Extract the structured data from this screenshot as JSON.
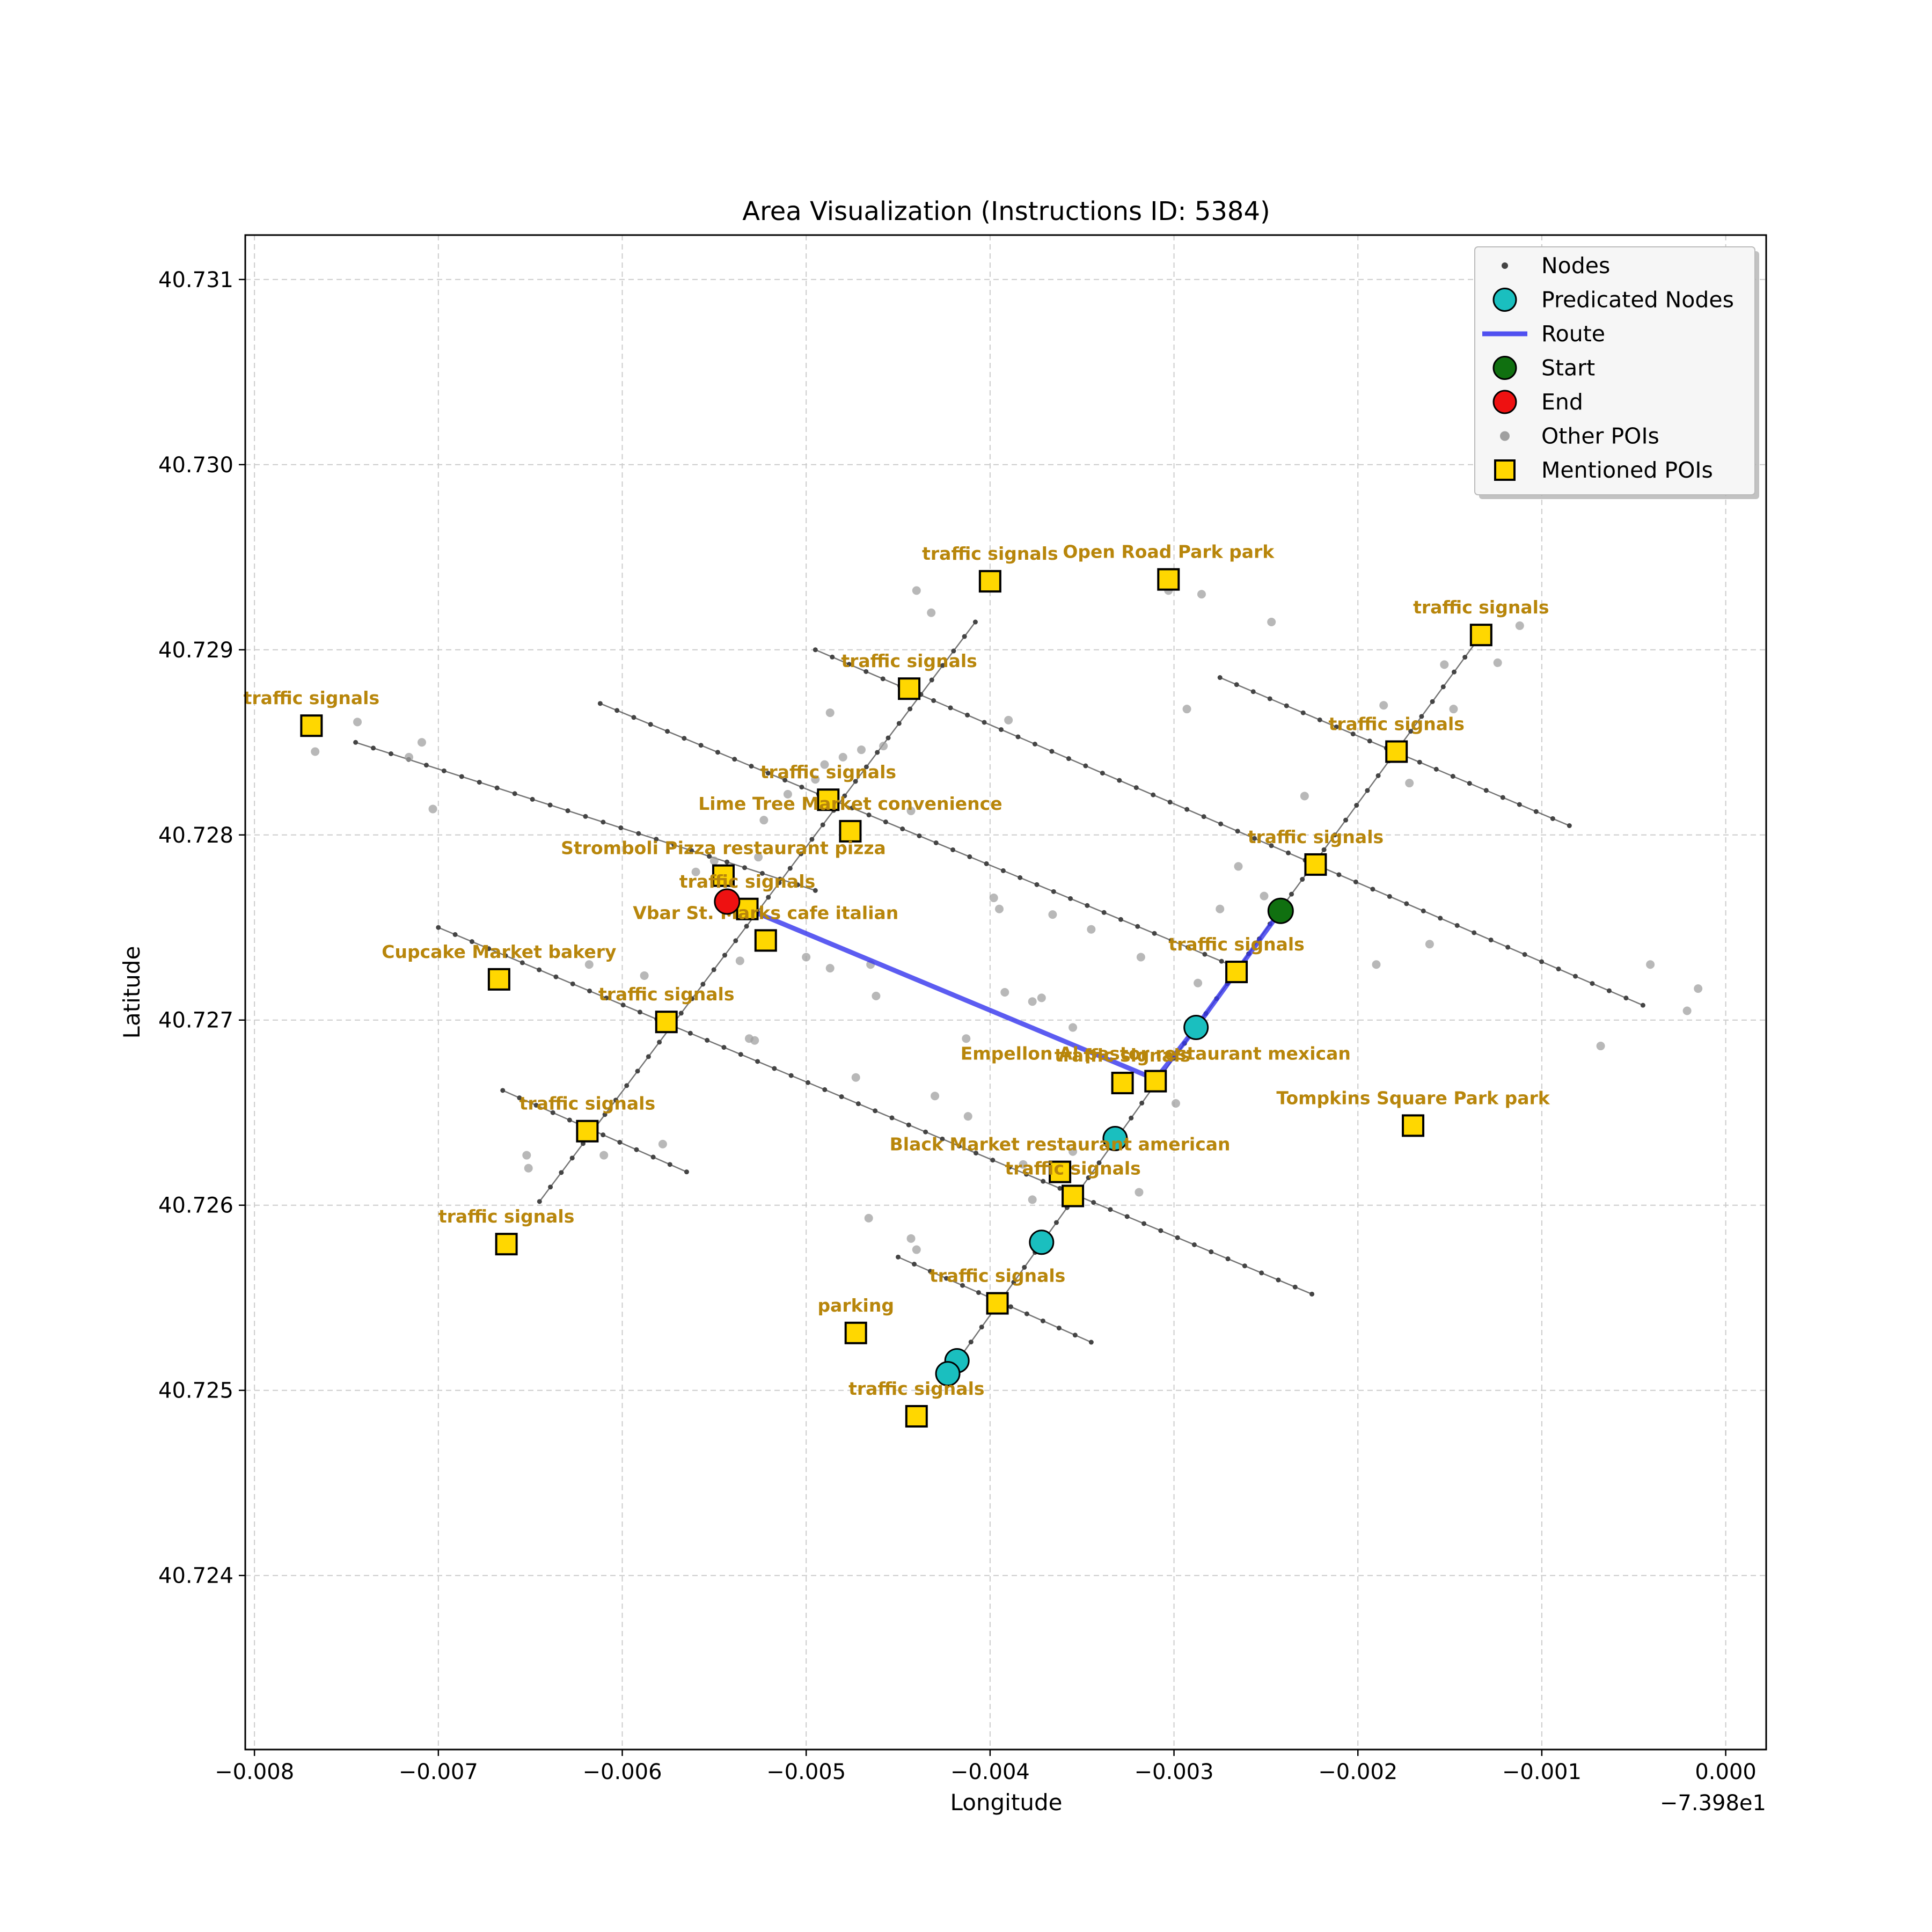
{
  "colors": {
    "node": "#444444",
    "road": "#555555",
    "predicated": "#1abfbf",
    "route": "#3333ee",
    "start": "#107010",
    "end": "#ee1111",
    "other_poi": "#a0a0a0",
    "mentioned_poi_fill": "#ffd700",
    "mentioned_poi_label": "#b8860b",
    "grid": "#cccccc"
  },
  "chart_data": {
    "type": "scatter",
    "title": "Area Visualization (Instructions ID: 5384)",
    "xlabel": "Longitude",
    "ylabel": "Latitude",
    "x_offset_label": "−7.398e1",
    "xlim": [
      -0.00805,
      0.00022
    ],
    "ylim": [
      40.72306,
      40.73124
    ],
    "xticks": [
      -0.008,
      -0.007,
      -0.006,
      -0.005,
      -0.004,
      -0.003,
      -0.002,
      -0.001,
      0.0
    ],
    "xtick_labels": [
      "−0.008",
      "−0.007",
      "−0.006",
      "−0.005",
      "−0.004",
      "−0.003",
      "−0.002",
      "−0.001",
      "0.000"
    ],
    "yticks": [
      40.724,
      40.725,
      40.726,
      40.727,
      40.728,
      40.729,
      40.73,
      40.731
    ],
    "ytick_labels": [
      "40.724",
      "40.725",
      "40.726",
      "40.727",
      "40.728",
      "40.729",
      "40.730",
      "40.731"
    ],
    "grid": true,
    "legend_position": "top-right",
    "legend": [
      {
        "label": "Nodes",
        "kind": "node"
      },
      {
        "label": "Predicated Nodes",
        "kind": "predicated"
      },
      {
        "label": "Route",
        "kind": "route"
      },
      {
        "label": "Start",
        "kind": "start"
      },
      {
        "label": "End",
        "kind": "end"
      },
      {
        "label": "Other POIs",
        "kind": "other_poi"
      },
      {
        "label": "Mentioned POIs",
        "kind": "mentioned_poi"
      }
    ],
    "roads": [
      {
        "name": "road-1",
        "from": [
          -0.00745,
          40.7285
        ],
        "to": [
          -0.00495,
          40.7277
        ]
      },
      {
        "name": "road-2",
        "from": [
          -0.007,
          40.7275
        ],
        "to": [
          -0.00225,
          40.72552
        ]
      },
      {
        "name": "road-3",
        "from": [
          -0.00665,
          40.72662
        ],
        "to": [
          -0.00565,
          40.72618
        ]
      },
      {
        "name": "road-4",
        "from": [
          -0.00612,
          40.72871
        ],
        "to": [
          -0.00265,
          40.72728
        ]
      },
      {
        "name": "road-5",
        "from": [
          -0.00495,
          40.729
        ],
        "to": [
          -0.00045,
          40.72708
        ]
      },
      {
        "name": "road-6",
        "from": [
          -0.00275,
          40.72885
        ],
        "to": [
          -0.00085,
          40.72805
        ]
      },
      {
        "name": "road-7",
        "from": [
          -0.0045,
          40.72572
        ],
        "to": [
          -0.00345,
          40.72526
        ]
      },
      {
        "name": "avenue-a",
        "from": [
          -0.00242,
          40.7276
        ],
        "to": [
          -0.0013,
          40.72912
        ]
      },
      {
        "name": "avenue-a-south",
        "from": [
          -0.00422,
          40.7251
        ],
        "to": [
          -0.00242,
          40.7276
        ]
      },
      {
        "name": "avenue-b",
        "from": [
          -0.00645,
          40.72602
        ],
        "to": [
          -0.00408,
          40.72915
        ]
      }
    ],
    "route": {
      "name": "Route",
      "points": [
        [
          -0.00242,
          40.72759
        ],
        [
          -0.00288,
          40.72696
        ],
        [
          -0.0031,
          40.72668
        ],
        [
          -0.00532,
          40.7276
        ],
        [
          -0.00543,
          40.72764
        ]
      ]
    },
    "predicated_nodes": [
      [
        -0.00288,
        40.72696
      ],
      [
        -0.00332,
        40.72636
      ],
      [
        -0.00372,
        40.7258
      ],
      [
        -0.00418,
        40.72516
      ],
      [
        -0.00423,
        40.72509
      ]
    ],
    "start": [
      -0.00242,
      40.72759
    ],
    "end": [
      -0.00543,
      40.72764
    ],
    "other_pois": [
      [
        -0.00767,
        40.72845
      ],
      [
        -0.00744,
        40.72861
      ],
      [
        -0.00716,
        40.72842
      ],
      [
        -0.00709,
        40.7285
      ],
      [
        -0.00703,
        40.72814
      ],
      [
        -0.00618,
        40.7273
      ],
      [
        -0.00588,
        40.72724
      ],
      [
        -0.0056,
        40.7278
      ],
      [
        -0.0055,
        40.72786
      ],
      [
        -0.00536,
        40.72732
      ],
      [
        -0.00526,
        40.72788
      ],
      [
        -0.00523,
        40.72808
      ],
      [
        -0.0051,
        40.72822
      ],
      [
        -0.00495,
        40.7283
      ],
      [
        -0.0049,
        40.72838
      ],
      [
        -0.0048,
        40.72842
      ],
      [
        -0.0047,
        40.72846
      ],
      [
        -0.00458,
        40.72848
      ],
      [
        -0.00487,
        40.72866
      ],
      [
        -0.00443,
        40.72813
      ],
      [
        -0.00432,
        40.7292
      ],
      [
        -0.0044,
        40.72932
      ],
      [
        -0.0039,
        40.72862
      ],
      [
        -0.00465,
        40.7273
      ],
      [
        -0.005,
        40.72734
      ],
      [
        -0.00487,
        40.72728
      ],
      [
        -0.00462,
        40.72713
      ],
      [
        -0.00413,
        40.7269
      ],
      [
        -0.00392,
        40.72715
      ],
      [
        -0.00377,
        40.7271
      ],
      [
        -0.00372,
        40.72712
      ],
      [
        -0.00355,
        40.72696
      ],
      [
        -0.00398,
        40.72766
      ],
      [
        -0.00395,
        40.7276
      ],
      [
        -0.00366,
        40.72757
      ],
      [
        -0.00345,
        40.72749
      ],
      [
        -0.00318,
        40.72734
      ],
      [
        -0.00287,
        40.7272
      ],
      [
        -0.00275,
        40.7276
      ],
      [
        -0.00265,
        40.72783
      ],
      [
        -0.00251,
        40.72767
      ],
      [
        -0.00229,
        40.72821
      ],
      [
        -0.00293,
        40.72868
      ],
      [
        -0.00285,
        40.7293
      ],
      [
        -0.00247,
        40.72915
      ],
      [
        -0.0019,
        40.7273
      ],
      [
        -0.00186,
        40.7287
      ],
      [
        -0.00172,
        40.72828
      ],
      [
        -0.00161,
        40.72741
      ],
      [
        -0.00153,
        40.72892
      ],
      [
        -0.00148,
        40.72868
      ],
      [
        -0.00112,
        40.72913
      ],
      [
        -0.00124,
        40.72893
      ],
      [
        -0.00041,
        40.7273
      ],
      [
        -0.00015,
        40.72717
      ],
      [
        -0.00021,
        40.72705
      ],
      [
        -0.00068,
        40.72686
      ],
      [
        -0.00528,
        40.72689
      ],
      [
        -0.00531,
        40.7269
      ],
      [
        -0.0061,
        40.72627
      ],
      [
        -0.00652,
        40.72627
      ],
      [
        -0.00651,
        40.7262
      ],
      [
        -0.00578,
        40.72633
      ],
      [
        -0.00466,
        40.72593
      ],
      [
        -0.00443,
        40.72582
      ],
      [
        -0.0044,
        40.72576
      ],
      [
        -0.0043,
        40.72659
      ],
      [
        -0.00412,
        40.72648
      ],
      [
        -0.00377,
        40.72603
      ],
      [
        -0.00355,
        40.72629
      ],
      [
        -0.00382,
        40.72622
      ],
      [
        -0.00319,
        40.72607
      ],
      [
        -0.00299,
        40.72655
      ],
      [
        -0.00473,
        40.72669
      ],
      [
        -0.00303,
        40.72932
      ]
    ],
    "mentioned_pois": [
      {
        "x": -0.00769,
        "y": 40.72859,
        "label": "traffic signals",
        "label_pos": "above"
      },
      {
        "x": -0.004,
        "y": 40.72937,
        "label": "traffic signals",
        "label_pos": "above"
      },
      {
        "x": -0.00303,
        "y": 40.72938,
        "label": "Open Road Park   park",
        "label_pos": "above"
      },
      {
        "x": -0.00133,
        "y": 40.72908,
        "label": "traffic signals",
        "label_pos": "above"
      },
      {
        "x": -0.00444,
        "y": 40.72879,
        "label": "traffic signals",
        "label_pos": "above"
      },
      {
        "x": -0.00179,
        "y": 40.72845,
        "label": "traffic signals",
        "label_pos": "above"
      },
      {
        "x": -0.00488,
        "y": 40.72819,
        "label": "traffic signals",
        "label_pos": "above"
      },
      {
        "x": -0.00476,
        "y": 40.72802,
        "label": "Lime Tree Market     convenience",
        "label_pos": "above"
      },
      {
        "x": -0.00223,
        "y": 40.72784,
        "label": "traffic signals",
        "label_pos": "above"
      },
      {
        "x": -0.00545,
        "y": 40.72778,
        "label": "Stromboli Pizza restaurant pizza",
        "label_pos": "above"
      },
      {
        "x": -0.00532,
        "y": 40.7276,
        "label": "traffic signals",
        "label_pos": "above"
      },
      {
        "x": -0.00522,
        "y": 40.72743,
        "label": "Vbar St. Marks cafe italian",
        "label_pos": "above"
      },
      {
        "x": -0.00667,
        "y": 40.72722,
        "label": "Cupcake Market     bakery",
        "label_pos": "above"
      },
      {
        "x": -0.00266,
        "y": 40.72726,
        "label": "traffic signals",
        "label_pos": "above"
      },
      {
        "x": -0.00576,
        "y": 40.72699,
        "label": "traffic signals",
        "label_pos": "above"
      },
      {
        "x": -0.00328,
        "y": 40.72666,
        "label": "traffic signals",
        "label_pos": "above"
      },
      {
        "x": -0.0031,
        "y": 40.72667,
        "label": "Empellon Al pastor restaurant mexican",
        "label_pos": "above"
      },
      {
        "x": -0.0017,
        "y": 40.72643,
        "label": "Tompkins Square Park   park",
        "label_pos": "above"
      },
      {
        "x": -0.00619,
        "y": 40.7264,
        "label": "traffic signals",
        "label_pos": "above"
      },
      {
        "x": -0.00362,
        "y": 40.72618,
        "label": "Black Market restaurant american",
        "label_pos": "above"
      },
      {
        "x": -0.00355,
        "y": 40.72605,
        "label": "traffic signals",
        "label_pos": "above"
      },
      {
        "x": -0.00663,
        "y": 40.72579,
        "label": "traffic signals",
        "label_pos": "above"
      },
      {
        "x": -0.00396,
        "y": 40.72547,
        "label": "traffic signals",
        "label_pos": "above"
      },
      {
        "x": -0.00473,
        "y": 40.72531,
        "label": "parking",
        "label_pos": "above"
      },
      {
        "x": -0.0044,
        "y": 40.72486,
        "label": "traffic signals",
        "label_pos": "above"
      }
    ]
  }
}
